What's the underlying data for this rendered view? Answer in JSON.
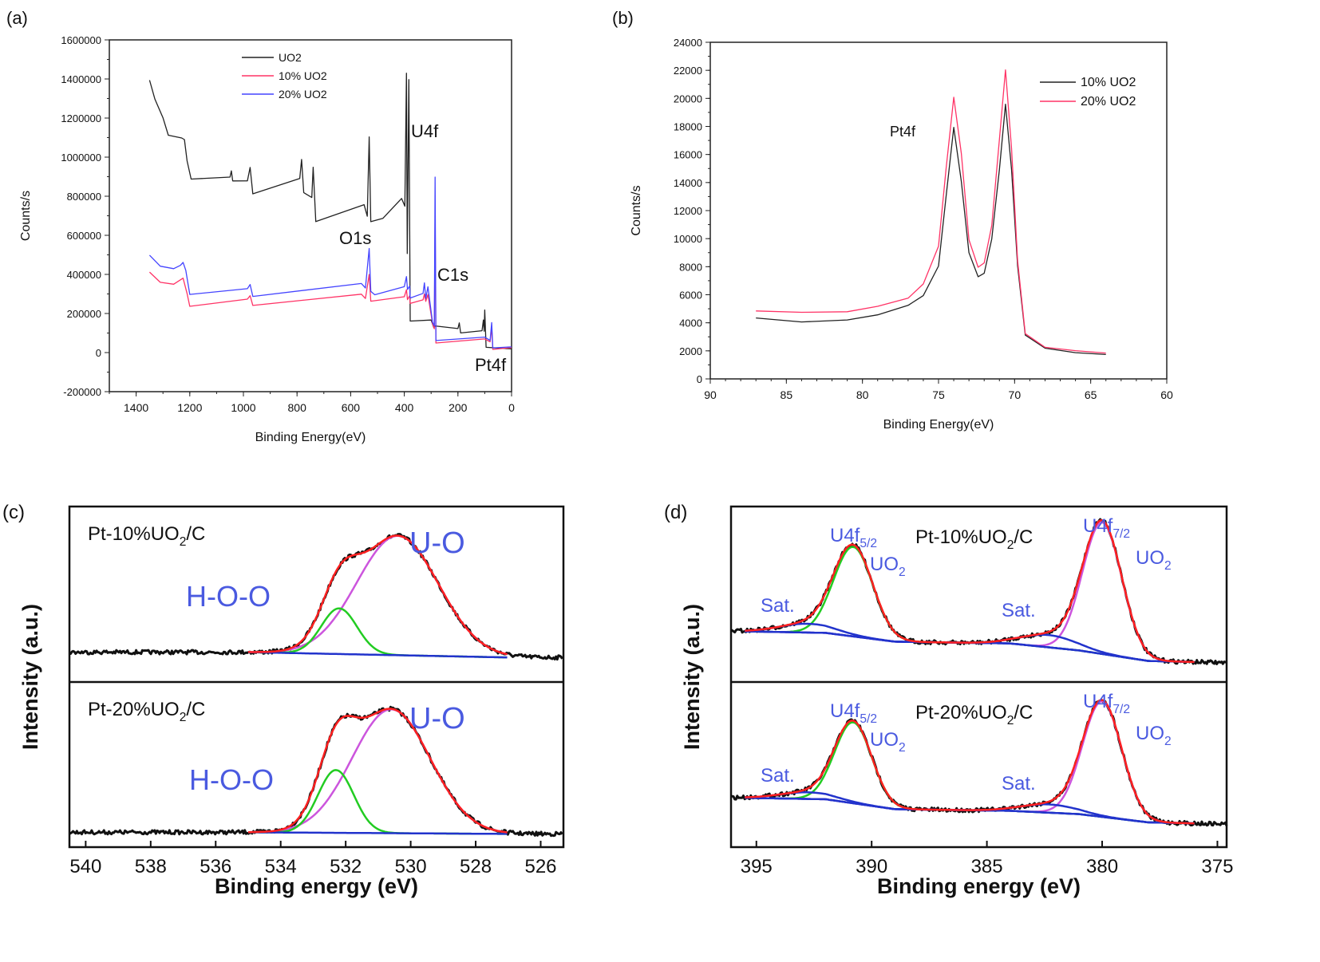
{
  "chart_data": [
    {
      "panel_label": "(a)",
      "type": "line",
      "xlabel": "Binding Energy(eV)",
      "ylabel": "Counts/s",
      "xlim": [
        1500,
        0
      ],
      "ylim": [
        -200000,
        1600000
      ],
      "xticks": [
        "1400",
        "1200",
        "1000",
        "800",
        "600",
        "400",
        "200",
        "0"
      ],
      "xtick_values": [
        1400,
        1200,
        1000,
        800,
        600,
        400,
        200,
        0
      ],
      "yticks": [
        "-200000",
        "0",
        "200000",
        "400000",
        "600000",
        "800000",
        "1000000",
        "1200000",
        "1400000",
        "1600000"
      ],
      "ytick_values": [
        -200000,
        0,
        200000,
        400000,
        600000,
        800000,
        1000000,
        1200000,
        1400000,
        1600000
      ],
      "legend_position": "top-center",
      "annotations": [
        "U4f",
        "O1s",
        "C1s",
        "Pt4f"
      ],
      "series": [
        {
          "name": "UO2",
          "color": "#222222",
          "points": [
            [
              1350,
              1390000
            ],
            [
              1330,
              1300000
            ],
            [
              1300,
              1200000
            ],
            [
              1280,
              1110000
            ],
            [
              1230,
              1100000
            ],
            [
              1220,
              1090000
            ],
            [
              1210,
              980000
            ],
            [
              1195,
              890000
            ],
            [
              1050,
              900000
            ],
            [
              1045,
              930000
            ],
            [
              1040,
              880000
            ],
            [
              985,
              880000
            ],
            [
              975,
              950000
            ],
            [
              965,
              810000
            ],
            [
              790,
              890000
            ],
            [
              783,
              990000
            ],
            [
              775,
              820000
            ],
            [
              745,
              790000
            ],
            [
              740,
              950000
            ],
            [
              730,
              670000
            ],
            [
              550,
              760000
            ],
            [
              538,
              700000
            ],
            [
              531,
              1100000
            ],
            [
              525,
              670000
            ],
            [
              480,
              690000
            ],
            [
              410,
              790000
            ],
            [
              398,
              750000
            ],
            [
              392,
              1430000
            ],
            [
              389,
              510000
            ],
            [
              383,
              1400000
            ],
            [
              378,
              160000
            ],
            [
              300,
              165000
            ],
            [
              290,
              130000
            ],
            [
              285,
              135000
            ],
            [
              200,
              120000
            ],
            [
              195,
              150000
            ],
            [
              190,
              100000
            ],
            [
              110,
              110000
            ],
            [
              105,
              170000
            ],
            [
              102,
              110000
            ],
            [
              100,
              220000
            ],
            [
              95,
              30000
            ],
            [
              0,
              15000
            ]
          ]
        },
        {
          "name": "10% UO2",
          "color": "#ff3366",
          "points": [
            [
              1350,
              410000
            ],
            [
              1310,
              360000
            ],
            [
              1260,
              350000
            ],
            [
              1225,
              380000
            ],
            [
              1210,
              300000
            ],
            [
              1200,
              240000
            ],
            [
              985,
              270000
            ],
            [
              975,
              290000
            ],
            [
              965,
              240000
            ],
            [
              560,
              300000
            ],
            [
              545,
              280000
            ],
            [
              531,
              400000
            ],
            [
              525,
              260000
            ],
            [
              400,
              285000
            ],
            [
              392,
              320000
            ],
            [
              388,
              270000
            ],
            [
              380,
              290000
            ],
            [
              378,
              250000
            ],
            [
              330,
              270000
            ],
            [
              325,
              300000
            ],
            [
              320,
              260000
            ],
            [
              312,
              300000
            ],
            [
              295,
              150000
            ],
            [
              288,
              125000
            ],
            [
              285,
              700000
            ],
            [
              282,
              50000
            ],
            [
              100,
              70000
            ],
            [
              80,
              55000
            ],
            [
              74,
              130000
            ],
            [
              70,
              20000
            ],
            [
              0,
              25000
            ]
          ]
        },
        {
          "name": "20% UO2",
          "color": "#4444ff",
          "points": [
            [
              1350,
              500000
            ],
            [
              1310,
              440000
            ],
            [
              1260,
              430000
            ],
            [
              1235,
              445000
            ],
            [
              1225,
              460000
            ],
            [
              1215,
              420000
            ],
            [
              1200,
              300000
            ],
            [
              985,
              330000
            ],
            [
              975,
              345000
            ],
            [
              965,
              290000
            ],
            [
              560,
              350000
            ],
            [
              545,
              330000
            ],
            [
              531,
              530000
            ],
            [
              525,
              310000
            ],
            [
              510,
              300000
            ],
            [
              400,
              335000
            ],
            [
              392,
              390000
            ],
            [
              388,
              320000
            ],
            [
              380,
              340000
            ],
            [
              378,
              280000
            ],
            [
              330,
              300000
            ],
            [
              325,
              360000
            ],
            [
              320,
              280000
            ],
            [
              312,
              340000
            ],
            [
              295,
              160000
            ],
            [
              288,
              140000
            ],
            [
              285,
              900000
            ],
            [
              282,
              60000
            ],
            [
              100,
              75000
            ],
            [
              80,
              60000
            ],
            [
              74,
              150000
            ],
            [
              70,
              20000
            ],
            [
              0,
              30000
            ]
          ]
        }
      ]
    },
    {
      "panel_label": "(b)",
      "type": "line",
      "xlabel": "Binding Energy(eV)",
      "ylabel": "Counts/s",
      "xlim": [
        90,
        60
      ],
      "ylim": [
        0,
        24000
      ],
      "xticks": [
        "90",
        "85",
        "80",
        "75",
        "70",
        "65",
        "60"
      ],
      "xtick_values": [
        90,
        85,
        80,
        75,
        70,
        65,
        60
      ],
      "yticks": [
        "0",
        "2000",
        "4000",
        "6000",
        "8000",
        "10000",
        "12000",
        "14000",
        "16000",
        "18000",
        "20000",
        "22000",
        "24000"
      ],
      "ytick_values": [
        0,
        2000,
        4000,
        6000,
        8000,
        10000,
        12000,
        14000,
        16000,
        18000,
        20000,
        22000,
        24000
      ],
      "legend_position": "top-right",
      "annotations": [
        "Pt4f"
      ],
      "series": [
        {
          "name": "10% UO2",
          "color": "#222222",
          "points": [
            [
              87,
              4300
            ],
            [
              84,
              4100
            ],
            [
              81,
              4200
            ],
            [
              79,
              4600
            ],
            [
              77,
              5200
            ],
            [
              76,
              6000
            ],
            [
              75,
              8000
            ],
            [
              74.5,
              13000
            ],
            [
              74,
              18000
            ],
            [
              73.5,
              14000
            ],
            [
              73,
              9000
            ],
            [
              72.4,
              7200
            ],
            [
              72,
              7600
            ],
            [
              71.5,
              10000
            ],
            [
              71,
              15000
            ],
            [
              70.6,
              19500
            ],
            [
              70.2,
              15000
            ],
            [
              69.8,
              8000
            ],
            [
              69.3,
              3200
            ],
            [
              68,
              2200
            ],
            [
              66,
              1900
            ],
            [
              64,
              1700
            ]
          ]
        },
        {
          "name": "20% UO2",
          "color": "#ff3366",
          "points": [
            [
              87,
              4800
            ],
            [
              84,
              4700
            ],
            [
              81,
              4800
            ],
            [
              79,
              5100
            ],
            [
              77,
              5800
            ],
            [
              76,
              6800
            ],
            [
              75,
              9500
            ],
            [
              74.5,
              15000
            ],
            [
              74,
              20000
            ],
            [
              73.5,
              16000
            ],
            [
              73,
              10000
            ],
            [
              72.4,
              7900
            ],
            [
              72,
              8300
            ],
            [
              71.5,
              11000
            ],
            [
              71,
              17000
            ],
            [
              70.6,
              22100
            ],
            [
              70.2,
              16500
            ],
            [
              69.8,
              8500
            ],
            [
              69.3,
              3300
            ],
            [
              68,
              2300
            ],
            [
              66,
              2000
            ],
            [
              64,
              1800
            ]
          ]
        }
      ]
    },
    {
      "panel_label": "(c)",
      "type": "line",
      "xlabel": "Binding energy (eV)",
      "ylabel": "Intensity (a.u.)",
      "xlim": [
        540.5,
        525.3
      ],
      "xticks": [
        "540",
        "538",
        "536",
        "534",
        "532",
        "530",
        "528",
        "526"
      ],
      "xtick_values": [
        540,
        538,
        536,
        534,
        532,
        530,
        528,
        526
      ],
      "fit_range": [
        535,
        527
      ],
      "subplots": [
        {
          "sample": {
            "pre": "Pt-10%UO",
            "sub": "2",
            "post": "/C"
          },
          "labels": {
            "uo": "U-O",
            "hoo": "H-O-O"
          },
          "background": [
            [
              540.5,
              0.17
            ],
            [
              535,
              0.17
            ],
            [
              527,
              0.14
            ],
            [
              525.3,
              0.14
            ]
          ],
          "peaks": [
            {
              "name": "U-O",
              "center": 530.4,
              "amplitude": 0.68,
              "sigma": 1.25,
              "color": "#cc55dd"
            },
            {
              "name": "H-O-O",
              "center": 532.2,
              "amplitude": 0.26,
              "sigma": 0.55,
              "color": "#22cc22"
            }
          ]
        },
        {
          "sample": {
            "pre": "Pt-20%UO",
            "sub": "2",
            "post": "/C"
          },
          "labels": {
            "uo": "U-O",
            "hoo": "H-O-O"
          },
          "background": [
            [
              540.5,
              0.09
            ],
            [
              535,
              0.09
            ],
            [
              527,
              0.08
            ],
            [
              525.3,
              0.08
            ]
          ],
          "peaks": [
            {
              "name": "U-O",
              "center": 530.6,
              "amplitude": 0.75,
              "sigma": 1.2,
              "color": "#cc55dd"
            },
            {
              "name": "H-O-O",
              "center": 532.3,
              "amplitude": 0.38,
              "sigma": 0.55,
              "color": "#22cc22"
            }
          ]
        }
      ]
    },
    {
      "panel_label": "(d)",
      "type": "line",
      "xlabel": "Binding energy (eV)",
      "ylabel": "Intensity (a.u.)",
      "xlim": [
        396.1,
        374.6
      ],
      "xticks": [
        "395",
        "390",
        "385",
        "380",
        "375"
      ],
      "xtick_values": [
        395,
        390,
        385,
        380,
        375
      ],
      "fit_range": [
        395.5,
        376
      ],
      "subplots": [
        {
          "sample": {
            "pre": "Pt-10%UO",
            "sub": "2",
            "post": "/C"
          },
          "labels": {
            "u52": "U4f",
            "u52sub": "5/2",
            "u72": "U4f",
            "u72sub": "7/2",
            "uo2": "UO",
            "uo2sub": "2",
            "sat": "Sat."
          },
          "background": [
            [
              396.1,
              0.29
            ],
            [
              392,
              0.28
            ],
            [
              389,
              0.23
            ],
            [
              384,
              0.22
            ],
            [
              381,
              0.18
            ],
            [
              378,
              0.12
            ],
            [
              374.6,
              0.11
            ]
          ],
          "peaks": [
            {
              "name": "U4f5/2",
              "center": 390.8,
              "amplitude": 0.51,
              "sigma": 0.85,
              "color": "#22cc22"
            },
            {
              "name": "U4f7/2",
              "center": 380.0,
              "amplitude": 0.75,
              "sigma": 0.85,
              "color": "#cc55dd"
            },
            {
              "name": "Sat.",
              "center": 392.8,
              "amplitude": 0.05,
              "sigma": 1.2,
              "color": "#2233cc"
            },
            {
              "name": "Sat.",
              "center": 382.3,
              "amplitude": 0.07,
              "sigma": 1.2,
              "color": "#2233cc"
            }
          ]
        },
        {
          "sample": {
            "pre": "Pt-20%UO",
            "sub": "2",
            "post": "/C"
          },
          "labels": {
            "u52": "U4f",
            "u52sub": "5/2",
            "u72": "U4f",
            "u72sub": "7/2",
            "uo2": "UO",
            "uo2sub": "2",
            "sat": "Sat."
          },
          "background": [
            [
              396.1,
              0.3
            ],
            [
              392,
              0.29
            ],
            [
              389,
              0.23
            ],
            [
              384,
              0.22
            ],
            [
              381,
              0.2
            ],
            [
              378,
              0.15
            ],
            [
              374.6,
              0.14
            ]
          ],
          "peaks": [
            {
              "name": "U4f5/2",
              "center": 390.8,
              "amplitude": 0.49,
              "sigma": 0.8,
              "color": "#22cc22"
            },
            {
              "name": "U4f7/2",
              "center": 380.0,
              "amplitude": 0.7,
              "sigma": 0.85,
              "color": "#cc55dd"
            },
            {
              "name": "Sat.",
              "center": 392.8,
              "amplitude": 0.04,
              "sigma": 1.2,
              "color": "#2233cc"
            },
            {
              "name": "Sat.",
              "center": 382.3,
              "amplitude": 0.05,
              "sigma": 1.2,
              "color": "#2233cc"
            }
          ]
        }
      ]
    }
  ],
  "colors": {
    "envelope": "#ff2020",
    "background_line": "#2233cc",
    "raw_data": "#111111",
    "annotation": "#4a5ae0"
  }
}
